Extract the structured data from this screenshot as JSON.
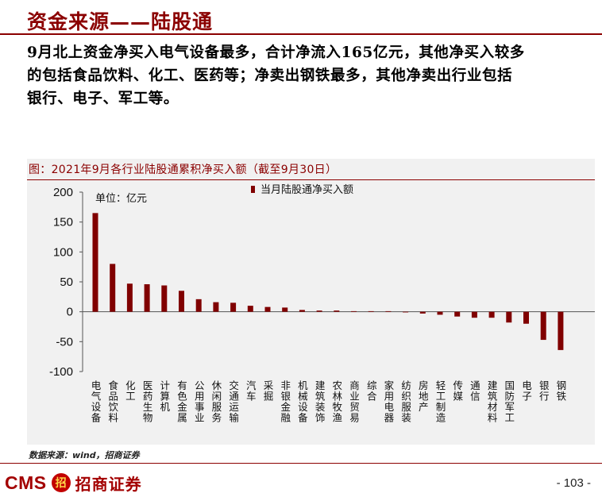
{
  "header": {
    "title": "资金来源——陆股通"
  },
  "body": {
    "text": "9月北上资金净买入电气设备最多，合计净流入165亿元，其他净买入较多\n的包括食品饮料、化工、医药等；净卖出钢铁最多，其他净卖出行业包括\n银行、电子、军工等。"
  },
  "figure": {
    "title": "图：2021年9月各行业陆股通累积净买入额（截至9月30日）",
    "unit_label": "单位：亿元",
    "source": "数据来源：wind，招商证券"
  },
  "footer": {
    "logo_cms": "CMS",
    "logo_mark": "招",
    "logo_cn": "招商证券",
    "page": "- 103 -"
  },
  "colors": {
    "bar": "#800000",
    "accent": "#8b0000"
  },
  "chart_data": {
    "type": "bar",
    "title": "图：2021年9月各行业陆股通累积净买入额（截至9月30日）",
    "ylabel": "单位：亿元",
    "ylim": [
      -100,
      200
    ],
    "yticks": [
      200,
      150,
      100,
      50,
      0,
      -50,
      -100
    ],
    "grid": false,
    "legend_position": "top-center",
    "categories": [
      "电气设备",
      "食品饮料",
      "化工",
      "医药生物",
      "计算机",
      "有色金属",
      "公用事业",
      "休闲服务",
      "交通运输",
      "汽车",
      "采掘",
      "非银金融",
      "机械设备",
      "建筑装饰",
      "农林牧渔",
      "商业贸易",
      "综合",
      "家用电器",
      "纺织服装",
      "房地产",
      "轻工制造",
      "传媒",
      "通信",
      "建筑材料",
      "国防军工",
      "电子",
      "银行",
      "钢铁"
    ],
    "series": [
      {
        "name": "当月陆股通净买入额",
        "values": [
          165,
          80,
          47,
          46,
          44,
          35,
          21,
          16,
          15,
          10,
          8,
          7,
          3,
          2,
          2,
          1,
          1,
          1,
          -1,
          -3,
          -5,
          -8,
          -10,
          -10,
          -18,
          -20,
          -47,
          -64
        ]
      }
    ]
  }
}
